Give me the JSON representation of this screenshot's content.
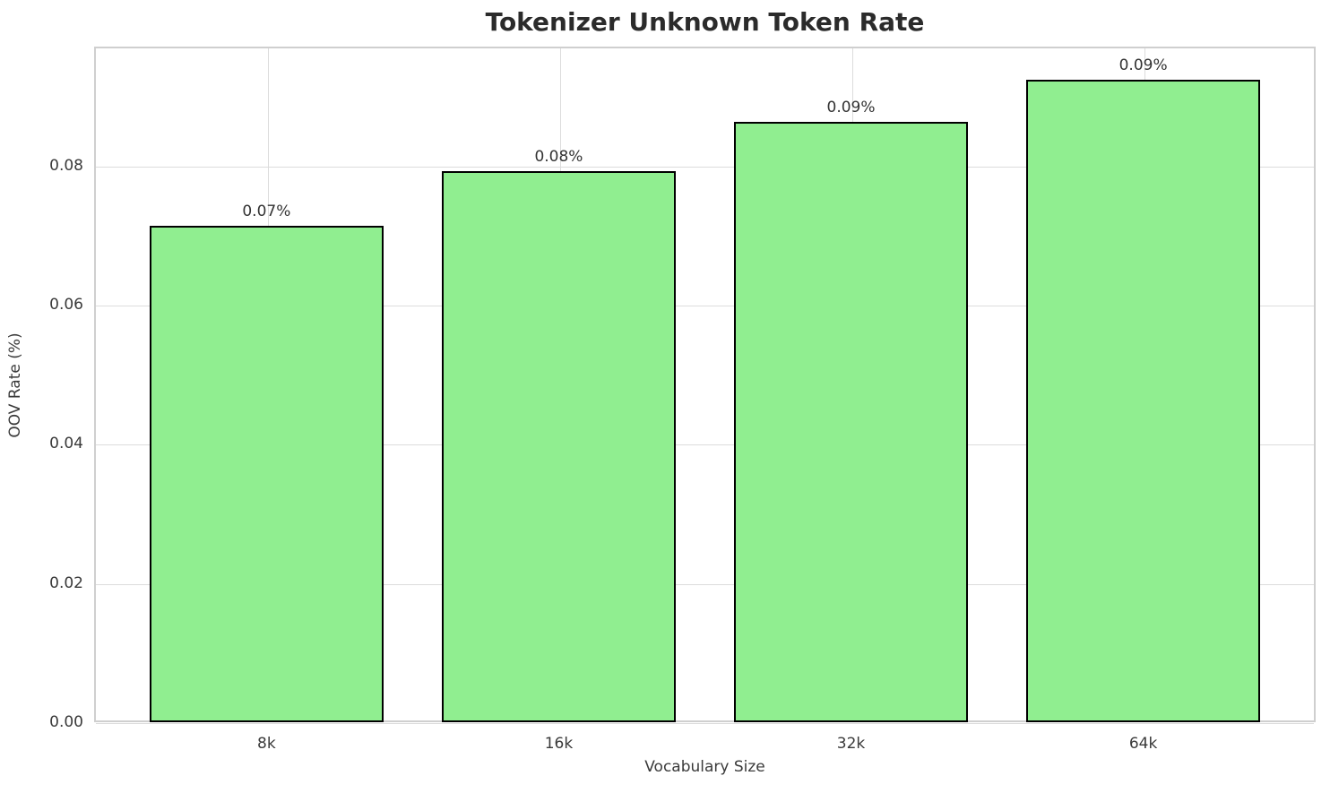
{
  "title": "Tokenizer Unknown Token Rate",
  "chart_data": {
    "type": "bar",
    "title": "Tokenizer Unknown Token Rate",
    "xlabel": "Vocabulary Size",
    "ylabel": "OOV Rate (%)",
    "categories": [
      "8k",
      "16k",
      "32k",
      "64k"
    ],
    "values": [
      0.0713,
      0.0792,
      0.0863,
      0.0923
    ],
    "bar_labels": [
      "0.07%",
      "0.08%",
      "0.09%",
      "0.09%"
    ],
    "yticks": [
      0.0,
      0.02,
      0.04,
      0.06,
      0.08
    ],
    "ytick_labels": [
      "0.00",
      "0.02",
      "0.04",
      "0.06",
      "0.08"
    ],
    "ylim": [
      0,
      0.0971
    ],
    "grid": true,
    "legend_position": "none",
    "bar_color": "#90EE90",
    "bar_edge_color": "#000000",
    "grid_color": "#dcdcdc",
    "spine_color": "#cfcfcf",
    "text_color": "#3a3a3a",
    "title_color": "#2b2b2b"
  }
}
